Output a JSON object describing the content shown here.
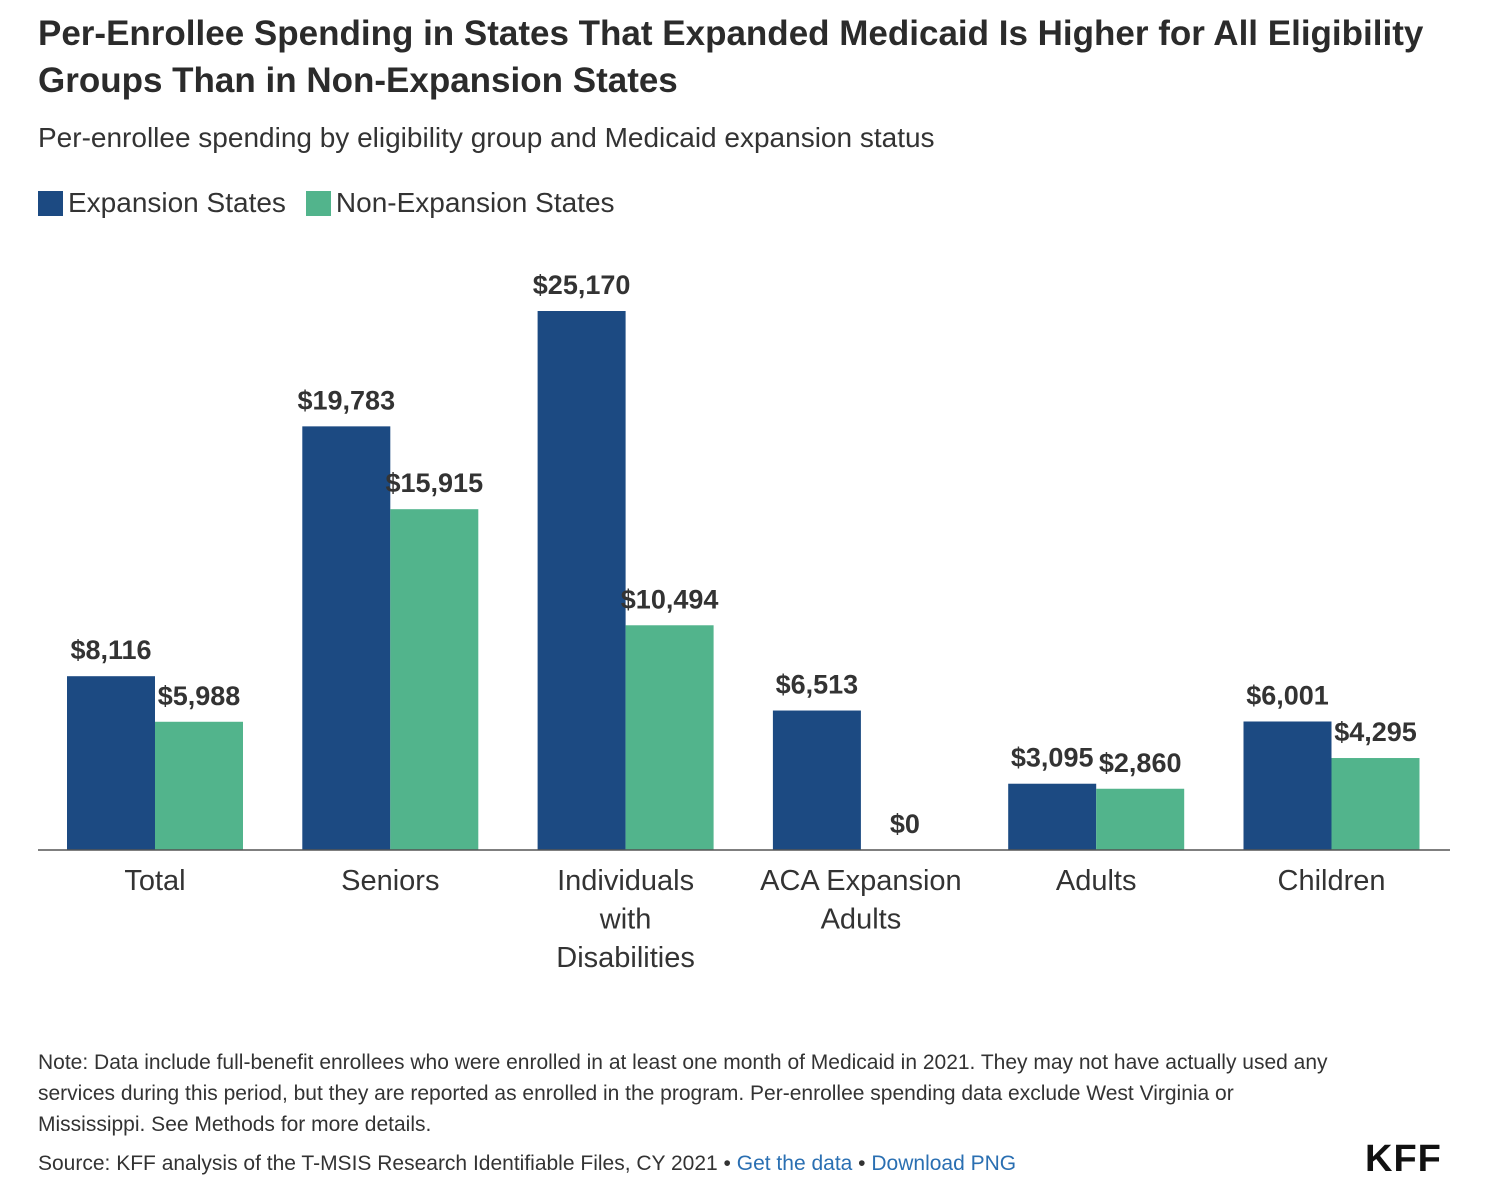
{
  "title": "Per-Enrollee Spending in States That Expanded Medicaid Is Higher for All Eligibility Groups Than in Non-Expansion States",
  "subtitle": "Per-enrollee spending by eligibility group and Medicaid expansion status",
  "colors": {
    "expansion": "#1c4a82",
    "non_expansion": "#52b48c",
    "axis": "#555555",
    "label": "#333333",
    "link": "#2a6fb2"
  },
  "chart_data": {
    "type": "bar",
    "title": "Per-Enrollee Spending in States That Expanded Medicaid Is Higher for All Eligibility Groups Than in Non-Expansion States",
    "subtitle": "Per-enrollee spending by eligibility group and Medicaid expansion status",
    "categories": [
      [
        "Total"
      ],
      [
        "Seniors"
      ],
      [
        "Individuals",
        "with",
        "Disabilities"
      ],
      [
        "ACA Expansion",
        "Adults"
      ],
      [
        "Adults"
      ],
      [
        "Children"
      ]
    ],
    "series": [
      {
        "name": "Expansion States",
        "values": [
          8116,
          19783,
          25170,
          6513,
          3095,
          6001
        ],
        "labels": [
          "$8,116",
          "$19,783",
          "$25,170",
          "$6,513",
          "$3,095",
          "$6,001"
        ]
      },
      {
        "name": "Non-Expansion States",
        "values": [
          5988,
          15915,
          10494,
          0,
          2860,
          4295
        ],
        "labels": [
          "$5,988",
          "$15,915",
          "$10,494",
          "$0",
          "$2,860",
          "$4,295"
        ]
      }
    ],
    "ylim": [
      0,
      25170
    ],
    "xlabel": "",
    "ylabel": "",
    "grid": false,
    "legend": "top-left"
  },
  "note": "Note: Data include full-benefit enrollees who were enrolled in at least one month of Medicaid in 2021. They may not have actually used any services during this period, but they are reported as enrolled in the program. Per-enrollee spending data exclude West Virginia or Mississippi. See Methods for more details.",
  "source": {
    "text": "Source: KFF analysis of the T-MSIS Research Identifiable Files, CY 2021",
    "separator": " • ",
    "get_data": "Get the data",
    "download": "Download PNG"
  },
  "logo": "KFF"
}
